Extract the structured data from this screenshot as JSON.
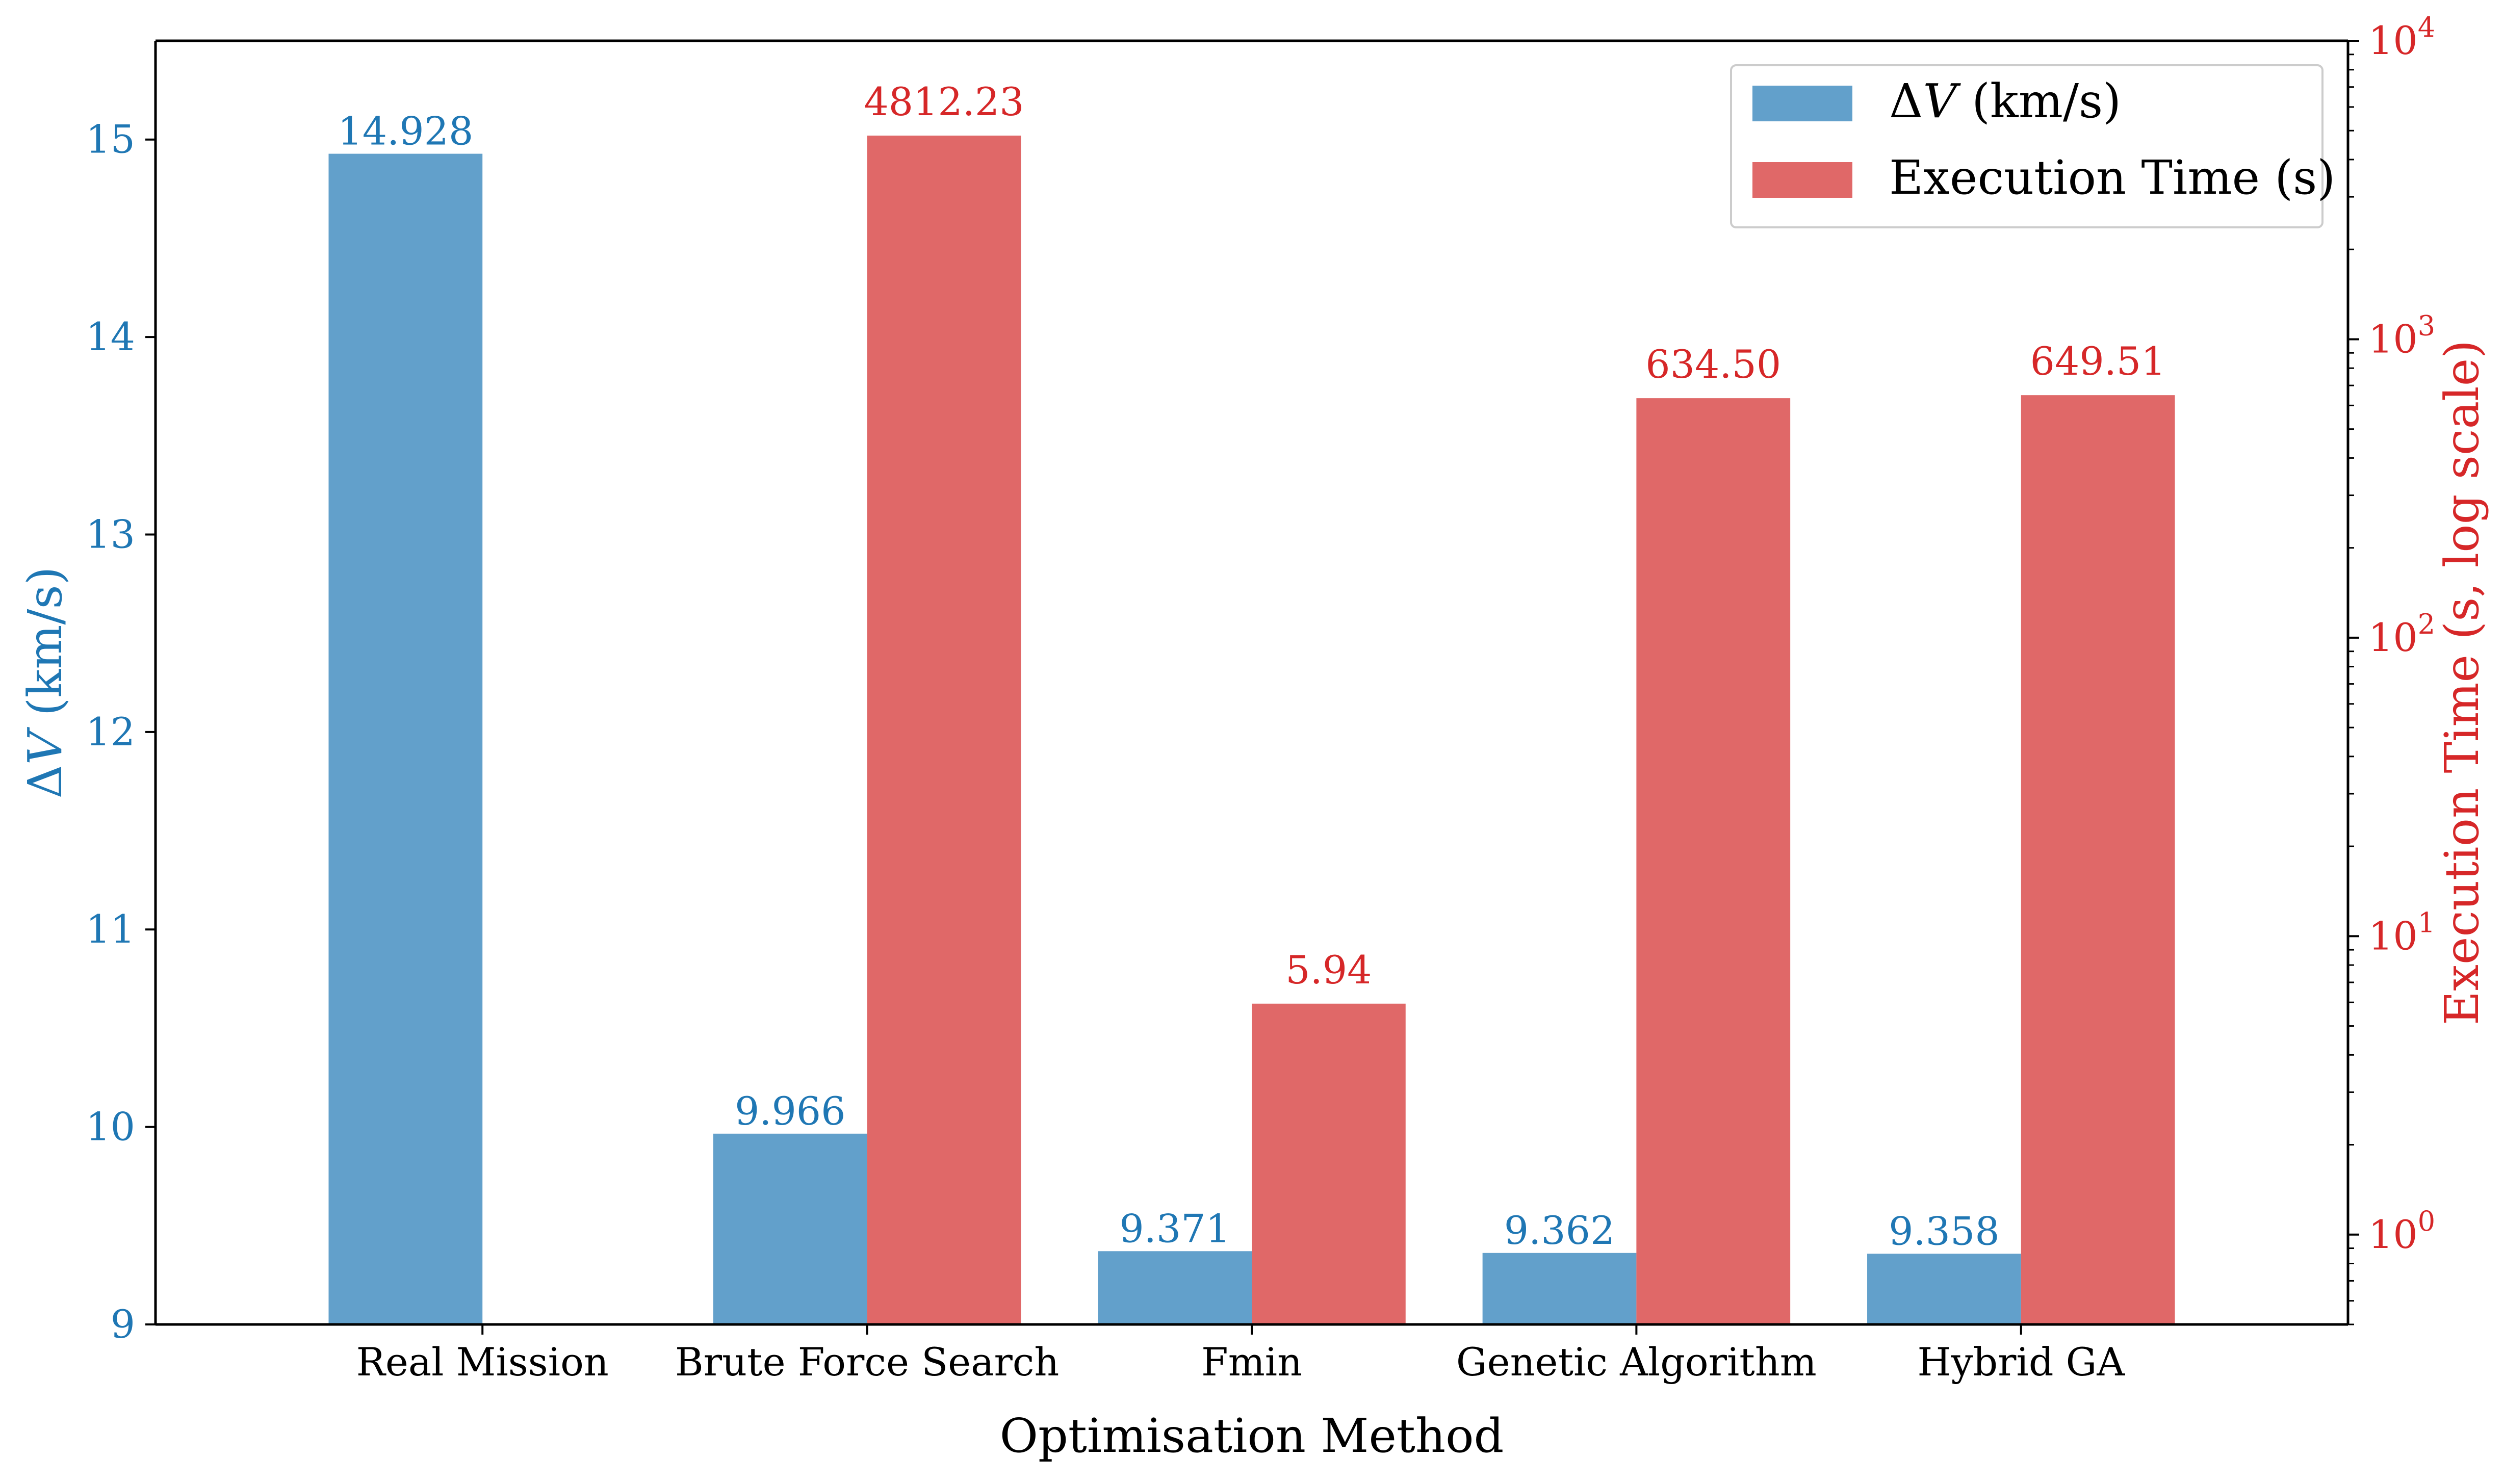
{
  "chart_data": {
    "type": "bar",
    "title": "",
    "xlabel": "Optimisation Method",
    "categories": [
      "Real Mission",
      "Brute Force Search",
      "Fmin",
      "Genetic Algorithm",
      "Hybrid GA"
    ],
    "ylabel_left": {
      "prefix": "ΔV",
      "suffix": " (km/s)"
    },
    "ylabel_right": "Execution Time (s, log scale)",
    "ylim_left": [
      9,
      15.5
    ],
    "ylim_right": [
      0.5,
      10000
    ],
    "yscale_left": "linear",
    "yscale_right": "log",
    "left_ticks": [
      9,
      10,
      11,
      12,
      13,
      14,
      15
    ],
    "right_ticks": [
      {
        "value": 1,
        "base": "10",
        "exp": "0"
      },
      {
        "value": 10,
        "base": "10",
        "exp": "1"
      },
      {
        "value": 100,
        "base": "10",
        "exp": "2"
      },
      {
        "value": 1000,
        "base": "10",
        "exp": "3"
      },
      {
        "value": 10000,
        "base": "10",
        "exp": "4"
      }
    ],
    "series": [
      {
        "name": "ΔV (km/s)",
        "legend_prefix": "ΔV",
        "legend_suffix": " (km/s)",
        "axis": "left",
        "color": "#62a0cb",
        "label_color": "#1f77b4",
        "values": [
          14.928,
          9.966,
          9.371,
          9.362,
          9.358
        ],
        "labels": [
          "14.928",
          "9.966",
          "9.371",
          "9.362",
          "9.358"
        ]
      },
      {
        "name": "Execution Time (s)",
        "axis": "right",
        "color": "#e06868",
        "label_color": "#d62728",
        "values": [
          null,
          4812.23,
          5.94,
          634.5,
          649.51
        ],
        "labels": [
          "",
          "4812.23",
          "5.94",
          "634.50",
          "649.51"
        ]
      }
    ],
    "grid": false,
    "legend_position": "top-right"
  }
}
